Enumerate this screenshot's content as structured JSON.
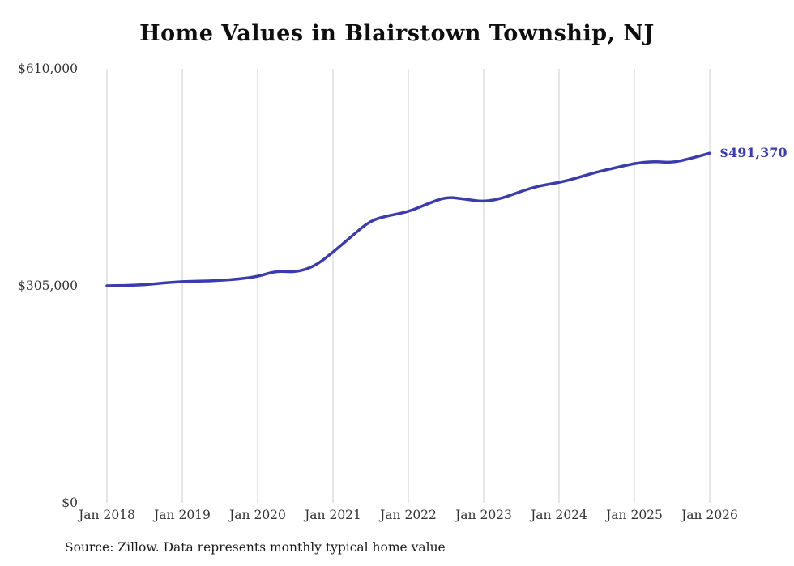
{
  "title": "Home Values in Blairstown Township, NJ",
  "source_note": "Source: Zillow. Data represents monthly typical home value",
  "end_label": "$491,370",
  "colors": {
    "line": "#3b3bb0",
    "grid": "#cccccc",
    "axis_text": "#333333",
    "end_label": "#3b3bb0",
    "title_text": "#0f0f0f"
  },
  "chart_data": {
    "type": "line",
    "title": "Home Values in Blairstown Township, NJ",
    "xlabel": "",
    "ylabel": "",
    "ylim": [
      0,
      610000
    ],
    "grid": "vertical",
    "legend": "none",
    "x": [
      "Jan 2018",
      "Apr 2018",
      "Jul 2018",
      "Oct 2018",
      "Jan 2019",
      "Apr 2019",
      "Jul 2019",
      "Oct 2019",
      "Jan 2020",
      "Apr 2020",
      "Jul 2020",
      "Oct 2020",
      "Jan 2021",
      "Apr 2021",
      "Jul 2021",
      "Oct 2021",
      "Jan 2022",
      "Apr 2022",
      "Jul 2022",
      "Oct 2022",
      "Jan 2023",
      "Apr 2023",
      "Jul 2023",
      "Oct 2023",
      "Jan 2024",
      "Apr 2024",
      "Jul 2024",
      "Oct 2024",
      "Jan 2025",
      "Apr 2025",
      "Jul 2025",
      "Oct 2025",
      "Jan 2026"
    ],
    "values": [
      305000,
      305500,
      306500,
      309000,
      311000,
      311500,
      312500,
      314500,
      318000,
      326000,
      324000,
      332000,
      352000,
      375000,
      397000,
      404000,
      409000,
      420000,
      430000,
      427000,
      423000,
      428000,
      438000,
      446000,
      450000,
      457000,
      465000,
      471000,
      477000,
      480000,
      478000,
      484000,
      491370
    ],
    "x_tick_labels": [
      "Jan 2018",
      "Jan 2019",
      "Jan 2020",
      "Jan 2021",
      "Jan 2022",
      "Jan 2023",
      "Jan 2024",
      "Jan 2025",
      "Jan 2026"
    ],
    "y_ticks": [
      {
        "label": "$610,000",
        "value": 610000
      },
      {
        "label": "$305,000",
        "value": 305000
      },
      {
        "label": "$0",
        "value": 0
      }
    ],
    "final_value_label": "$491,370",
    "final_value": 491370
  }
}
